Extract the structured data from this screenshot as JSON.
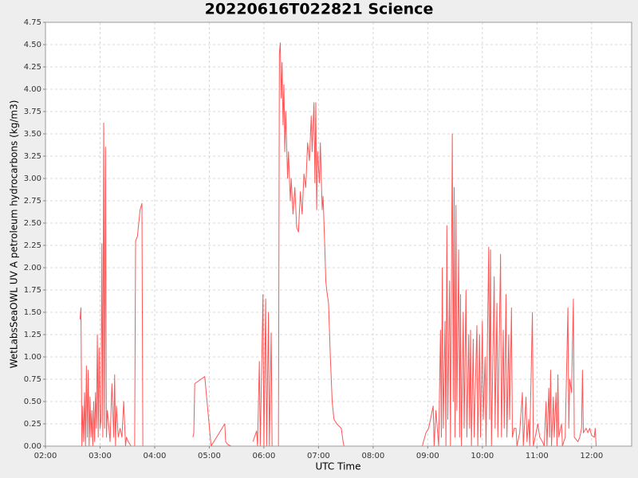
{
  "chart_data": {
    "type": "line",
    "title": "20220616T022821 Science",
    "x_label": "UTC Time",
    "y_label": "WetLabsSeaOWL UV A petroleum hydrocarbons (kg/m3)",
    "color": "#ff5555",
    "grid": true,
    "x": [
      "02:38",
      "02:39",
      "02:40",
      "02:41",
      "02:42",
      "02:43",
      "02:44",
      "02:45",
      "02:46",
      "02:47",
      "02:48",
      "02:49",
      "02:50",
      "02:51",
      "02:52",
      "02:53",
      "02:54",
      "02:55",
      "02:56",
      "02:57",
      "02:58",
      "02:59",
      "03:00",
      "03:01",
      "03:02",
      "03:03",
      "03:04",
      "03:05",
      "03:06",
      "03:07",
      "03:08",
      "03:09",
      "03:11",
      "03:13",
      "03:15",
      "03:16",
      "03:17",
      "03:18",
      "03:20",
      "03:22",
      "03:24",
      "03:26",
      "03:28",
      "03:29",
      "03:31",
      "03:34",
      "03:38",
      "03:39",
      "03:41",
      "03:44",
      "03:46",
      "03:47",
      "04:20",
      "04:42",
      "04:43",
      "04:44",
      "04:55",
      "05:02",
      "05:17",
      "05:18",
      "05:20",
      "05:24",
      "05:35",
      "05:48",
      "05:52",
      "05:53",
      "05:55",
      "05:56",
      "05:59",
      "06:00",
      "06:02",
      "06:03",
      "06:05",
      "06:06",
      "06:08",
      "06:09",
      "06:16",
      "06:17",
      "06:18",
      "06:19",
      "06:20",
      "06:21",
      "06:22",
      "06:23",
      "06:24",
      "06:26",
      "06:27",
      "06:29",
      "06:30",
      "06:32",
      "06:34",
      "06:36",
      "06:38",
      "06:40",
      "06:42",
      "06:44",
      "06:46",
      "06:48",
      "06:50",
      "06:52",
      "06:53",
      "06:55",
      "06:56",
      "06:57",
      "06:58",
      "06:59",
      "07:01",
      "07:02",
      "07:04",
      "07:05",
      "07:07",
      "07:08",
      "07:09",
      "07:11",
      "07:13",
      "07:15",
      "07:17",
      "07:20",
      "07:25",
      "07:27",
      "07:28",
      "08:54",
      "08:58",
      "09:01",
      "09:06",
      "09:07",
      "09:09",
      "09:12",
      "09:14",
      "09:15",
      "09:16",
      "09:17",
      "09:19",
      "09:20",
      "09:21",
      "09:22",
      "09:24",
      "09:25",
      "09:27",
      "09:28",
      "09:29",
      "09:30",
      "09:31",
      "09:32",
      "09:34",
      "09:35",
      "09:36",
      "09:37",
      "09:39",
      "09:40",
      "09:42",
      "09:43",
      "09:45",
      "09:46",
      "09:47",
      "09:48",
      "09:50",
      "09:51",
      "09:54",
      "09:55",
      "09:57",
      "09:58",
      "10:00",
      "10:01",
      "10:03",
      "10:04",
      "10:07",
      "10:08",
      "10:09",
      "10:10",
      "10:13",
      "10:14",
      "10:16",
      "10:17",
      "10:20",
      "10:21",
      "10:23",
      "10:24",
      "10:26",
      "10:27",
      "10:29",
      "10:30",
      "10:32",
      "10:33",
      "10:35",
      "10:37",
      "10:38",
      "10:41",
      "10:44",
      "10:45",
      "10:48",
      "10:49",
      "10:51",
      "10:52",
      "10:55",
      "10:56",
      "10:58",
      "11:01",
      "11:03",
      "11:06",
      "11:08",
      "11:10",
      "11:11",
      "11:13",
      "11:14",
      "11:15",
      "11:16",
      "11:18",
      "11:19",
      "11:21",
      "11:22",
      "11:23",
      "11:24",
      "11:27",
      "11:28",
      "11:31",
      "11:34",
      "11:35",
      "11:36",
      "11:38",
      "11:40",
      "11:41",
      "11:45",
      "11:47",
      "11:49",
      "11:50",
      "11:51",
      "11:54",
      "11:56",
      "11:58",
      "12:00",
      "12:03",
      "12:04",
      "12:05"
    ],
    "values": [
      1.42,
      1.55,
      0,
      0.45,
      0.05,
      0.6,
      0,
      0.9,
      0.1,
      0.85,
      0,
      0.55,
      0.1,
      0.4,
      0,
      0.5,
      0.05,
      0.6,
      0.2,
      1.25,
      0.1,
      1.1,
      0.2,
      0.3,
      2.27,
      0.1,
      3.62,
      0.2,
      3.35,
      0.1,
      0.4,
      0.3,
      0.05,
      0.7,
      0.1,
      0.8,
      0,
      0.45,
      0.1,
      0.2,
      0.1,
      0.5,
      0,
      0.1,
      0.05,
      0,
      0,
      2.3,
      2.35,
      2.65,
      2.72,
      0,
      null,
      0.1,
      0.15,
      0.7,
      0.78,
      0,
      0.25,
      0.05,
      0.02,
      0,
      null,
      0.05,
      0.17,
      0,
      0.95,
      0,
      1.7,
      0,
      1.65,
      0,
      1.5,
      0,
      1.27,
      0,
      0,
      4.4,
      4.52,
      3.9,
      4.3,
      3.6,
      4.05,
      3.3,
      3.75,
      3.0,
      3.3,
      2.75,
      3.0,
      2.6,
      2.9,
      2.45,
      2.4,
      2.85,
      2.6,
      3.05,
      2.9,
      3.4,
      3.2,
      3.7,
      3.3,
      3.85,
      2.95,
      3.85,
      2.65,
      3.3,
      2.95,
      3.4,
      2.65,
      2.8,
      2.2,
      1.85,
      1.75,
      1.6,
      1.0,
      0.5,
      0.3,
      0.25,
      0.2,
      0.05,
      0,
      0,
      0.15,
      0.2,
      0.45,
      0,
      0.4,
      0,
      1.3,
      0.1,
      2.0,
      0.2,
      1.4,
      0,
      2.47,
      0.3,
      1.85,
      0,
      3.5,
      0.5,
      2.9,
      0.1,
      2.7,
      0.4,
      2.2,
      0.1,
      1.7,
      0,
      1.5,
      0.2,
      1.75,
      0.1,
      1.25,
      0.2,
      1.3,
      0,
      1.2,
      0.1,
      1.35,
      0,
      1.25,
      0.1,
      1.4,
      0.3,
      1.0,
      0,
      2.23,
      0.3,
      2.2,
      0,
      1.9,
      0.2,
      1.6,
      0.1,
      2.15,
      0.1,
      1.3,
      0.2,
      1.7,
      0.1,
      1.25,
      0.3,
      1.55,
      0.1,
      0.2,
      0.2,
      0,
      0.15,
      0.6,
      0,
      0.55,
      0.05,
      0.3,
      0,
      1.5,
      0,
      0.1,
      0.25,
      0.1,
      0.05,
      0,
      0.5,
      0,
      0.65,
      0.1,
      0.85,
      0,
      0.55,
      0.1,
      0.6,
      0,
      0.8,
      0.1,
      0.25,
      0,
      0.1,
      1.55,
      0.2,
      0.75,
      0.6,
      1.65,
      0.1,
      0.05,
      0.1,
      0.2,
      0.85,
      0.15,
      0.2,
      0.15,
      0.2,
      0.12,
      0.1,
      0.2,
      0
    ],
    "xlim": [
      "02:00",
      "12:44"
    ],
    "xticks": [
      "02:00",
      "03:00",
      "04:00",
      "05:00",
      "06:00",
      "07:00",
      "08:00",
      "09:00",
      "10:00",
      "11:00",
      "12:00"
    ],
    "ylim": [
      0,
      4.75
    ],
    "yticks": [
      {
        "value": 0,
        "label": "0.00"
      },
      0.25,
      {
        "value": 0.5,
        "label": "0.50"
      },
      0.75,
      {
        "value": 1,
        "label": "1.00"
      },
      1.25,
      {
        "value": 1.5,
        "label": "1.50"
      },
      1.75,
      {
        "value": 2,
        "label": "2.00"
      },
      2.25,
      {
        "value": 2.5,
        "label": "2.50"
      },
      2.75,
      {
        "value": 3,
        "label": "3.00"
      },
      3.25,
      {
        "value": 3.5,
        "label": "3.50"
      },
      3.75,
      {
        "value": 4,
        "label": "4.00"
      },
      4.25,
      {
        "value": 4.5,
        "label": "4.50"
      },
      4.75
    ]
  }
}
